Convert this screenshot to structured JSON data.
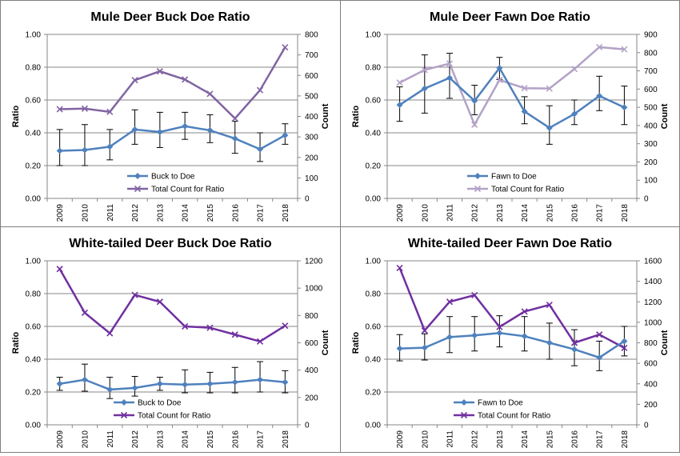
{
  "chart_data": [
    {
      "type": "line",
      "title": "Mule Deer Buck Doe Ratio",
      "categories": [
        "2009",
        "2010",
        "2011",
        "2012",
        "2013",
        "2014",
        "2015",
        "2016",
        "2017",
        "2018"
      ],
      "ylabel": "Ratio",
      "y2label": "Count",
      "ylim": [
        0,
        1.0
      ],
      "y2lim": [
        0,
        800
      ],
      "yticks": [
        "0.00",
        "0.20",
        "0.40",
        "0.60",
        "0.80",
        "1.00"
      ],
      "y2ticks": [
        "0",
        "100",
        "200",
        "300",
        "400",
        "500",
        "600",
        "700",
        "800"
      ],
      "legend_position": "bottom-right",
      "series": [
        {
          "name": "Buck to Doe",
          "axis": "left",
          "color": "#4f81bd",
          "marker": "diamond",
          "values": [
            0.29,
            0.295,
            0.315,
            0.42,
            0.405,
            0.44,
            0.415,
            0.365,
            0.3,
            0.385
          ],
          "err_low": [
            0.2,
            0.2,
            0.235,
            0.33,
            0.31,
            0.36,
            0.34,
            0.275,
            0.225,
            0.33
          ],
          "err_high": [
            0.42,
            0.45,
            0.42,
            0.54,
            0.525,
            0.525,
            0.51,
            0.47,
            0.4,
            0.455
          ]
        },
        {
          "name": "Total Count for Ratio",
          "axis": "right",
          "color": "#8064a2",
          "marker": "x",
          "values": [
            435,
            438,
            422,
            577,
            620,
            580,
            510,
            390,
            528,
            737
          ]
        }
      ]
    },
    {
      "type": "line",
      "title": "Mule Deer Fawn Doe Ratio",
      "categories": [
        "2009",
        "2010",
        "2011",
        "2012",
        "2013",
        "2014",
        "2015",
        "2016",
        "2017",
        "2018"
      ],
      "ylabel": "Ratio",
      "y2label": "Count",
      "ylim": [
        0,
        1.0
      ],
      "y2lim": [
        0,
        900
      ],
      "yticks": [
        "0.00",
        "0.20",
        "0.40",
        "0.60",
        "0.80",
        "1.00"
      ],
      "y2ticks": [
        "0",
        "100",
        "200",
        "300",
        "400",
        "500",
        "600",
        "700",
        "800",
        "900"
      ],
      "legend_position": "bottom-right",
      "series": [
        {
          "name": "Fawn to Doe",
          "axis": "left",
          "color": "#4f81bd",
          "marker": "diamond",
          "values": [
            0.57,
            0.67,
            0.735,
            0.595,
            0.795,
            0.53,
            0.43,
            0.515,
            0.625,
            0.555
          ],
          "err_low": [
            0.47,
            0.52,
            0.61,
            0.51,
            0.725,
            0.455,
            0.33,
            0.45,
            0.535,
            0.45
          ],
          "err_high": [
            0.68,
            0.875,
            0.885,
            0.69,
            0.86,
            0.62,
            0.565,
            0.6,
            0.745,
            0.685
          ]
        },
        {
          "name": "Total Count for Ratio",
          "axis": "right",
          "color": "#b3a2c7",
          "marker": "x",
          "values": [
            635,
            705,
            740,
            405,
            650,
            605,
            603,
            710,
            830,
            818
          ]
        }
      ]
    },
    {
      "type": "line",
      "title": "White-tailed Deer Buck Doe Ratio",
      "categories": [
        "2009",
        "2010",
        "2011",
        "2012",
        "2013",
        "2014",
        "2015",
        "2016",
        "2017",
        "2018"
      ],
      "ylabel": "Ratio",
      "y2label": "Count",
      "ylim": [
        0,
        1.0
      ],
      "y2lim": [
        0,
        1200
      ],
      "yticks": [
        "0.00",
        "0.20",
        "0.40",
        "0.60",
        "0.80",
        "1.00"
      ],
      "y2ticks": [
        "0",
        "200",
        "400",
        "600",
        "800",
        "1000",
        "1200"
      ],
      "legend_position": "bottom-left",
      "series": [
        {
          "name": "Buck to Doe",
          "axis": "left",
          "color": "#4f81bd",
          "marker": "diamond",
          "values": [
            0.25,
            0.275,
            0.215,
            0.225,
            0.25,
            0.245,
            0.25,
            0.26,
            0.275,
            0.26
          ],
          "err_low": [
            0.21,
            0.205,
            0.16,
            0.175,
            0.21,
            0.195,
            0.195,
            0.195,
            0.2,
            0.195
          ],
          "err_high": [
            0.29,
            0.37,
            0.29,
            0.295,
            0.29,
            0.335,
            0.32,
            0.35,
            0.385,
            0.33
          ]
        },
        {
          "name": "Total Count for Ratio",
          "axis": "right",
          "color": "#7030a0",
          "marker": "x",
          "values": [
            1140,
            820,
            670,
            950,
            900,
            720,
            710,
            660,
            610,
            725
          ]
        }
      ]
    },
    {
      "type": "line",
      "title": "White-tailed Deer Fawn Doe Ratio",
      "categories": [
        "2009",
        "2010",
        "2011",
        "2012",
        "2013",
        "2014",
        "2015",
        "2016",
        "2017",
        "2018"
      ],
      "ylabel": "Ratio",
      "y2label": "Count",
      "ylim": [
        0,
        1.0
      ],
      "y2lim": [
        0,
        1600
      ],
      "yticks": [
        "0.00",
        "0.20",
        "0.40",
        "0.60",
        "0.80",
        "1.00"
      ],
      "y2ticks": [
        "0",
        "200",
        "400",
        "600",
        "800",
        "1000",
        "1200",
        "1400",
        "1600"
      ],
      "legend_position": "bottom-left",
      "series": [
        {
          "name": "Fawn to Doe",
          "axis": "left",
          "color": "#4f81bd",
          "marker": "diamond",
          "values": [
            0.465,
            0.47,
            0.535,
            0.545,
            0.56,
            0.54,
            0.5,
            0.46,
            0.41,
            0.51
          ],
          "err_low": [
            0.39,
            0.395,
            0.44,
            0.45,
            0.475,
            0.45,
            0.4,
            0.36,
            0.33,
            0.42
          ],
          "err_high": [
            0.55,
            0.555,
            0.66,
            0.66,
            0.665,
            0.66,
            0.62,
            0.58,
            0.51,
            0.6
          ]
        },
        {
          "name": "Total Count for Ratio",
          "axis": "right",
          "color": "#7030a0",
          "marker": "x",
          "values": [
            1530,
            920,
            1200,
            1265,
            955,
            1105,
            1170,
            800,
            880,
            750
          ]
        }
      ]
    }
  ]
}
